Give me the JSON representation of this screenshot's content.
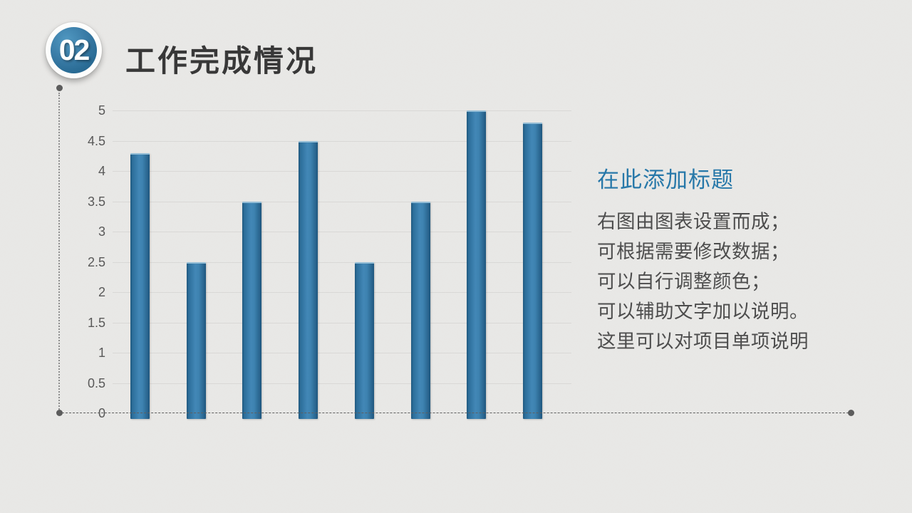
{
  "badge": {
    "number": "02"
  },
  "header": {
    "title": "工作完成情况"
  },
  "chart_data": {
    "type": "bar",
    "values": [
      4.3,
      2.5,
      3.5,
      4.5,
      2.5,
      3.5,
      5,
      4.8
    ],
    "y_tick_labels": [
      "5",
      "4.5",
      "4",
      "3.5",
      "3",
      "2.5",
      "2",
      "1.5",
      "1",
      "0.5",
      "0"
    ],
    "ylim": [
      0,
      5
    ],
    "grid": true,
    "legend": "none",
    "bar_color": "#35749f",
    "title": "",
    "xlabel": "",
    "ylabel": ""
  },
  "annotation": {
    "heading": "在此添加标题",
    "lines": [
      "右图由图表设置而成；",
      "可根据需要修改数据；",
      "可以自行调整颜色；",
      "可以辅助文字加以说明。",
      "这里可以对项目单项说明"
    ]
  },
  "colors": {
    "background": "#e9e8e6",
    "badge_blue": "#2e7099",
    "bar_blue": "#35749f",
    "heading_blue": "#2778a9",
    "title_text": "#383838",
    "body_text": "#4d4d4d",
    "axis_text": "#595959"
  }
}
